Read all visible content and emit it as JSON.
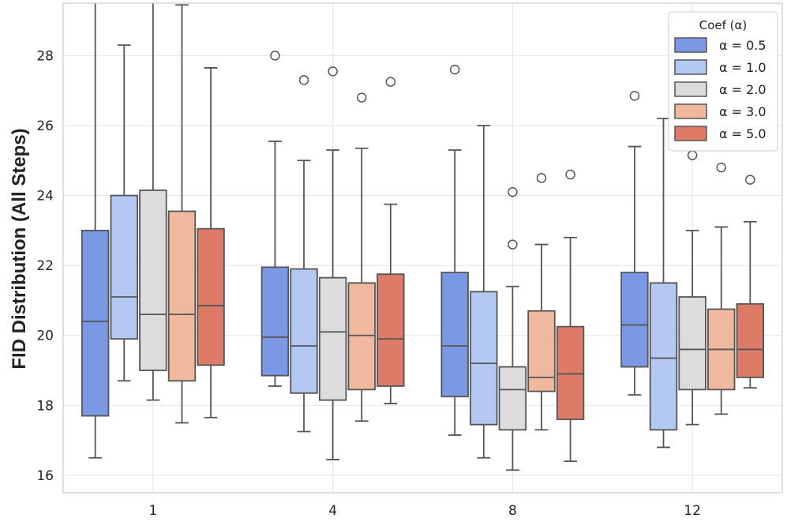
{
  "chart_data": {
    "type": "box",
    "title": "",
    "xlabel": "",
    "ylabel": "FID Distribution (All Steps)",
    "ylim": [
      15.5,
      29.5
    ],
    "yticks": [
      16,
      18,
      20,
      22,
      24,
      26,
      28
    ],
    "grid": true,
    "categories": [
      "1",
      "4",
      "8",
      "12"
    ],
    "legend": {
      "title": "Coef (α)",
      "placement": "top-right"
    },
    "series": [
      {
        "name": "α = 0.5",
        "color": "#7b98e5",
        "boxes": [
          {
            "min": 16.5,
            "q1": 17.7,
            "median": 20.4,
            "q3": 23.0,
            "max": 29.5,
            "outliers": []
          },
          {
            "min": 18.55,
            "q1": 18.85,
            "median": 19.95,
            "q3": 21.95,
            "max": 25.55,
            "outliers": [
              28.0
            ]
          },
          {
            "min": 17.15,
            "q1": 18.25,
            "median": 19.7,
            "q3": 21.8,
            "max": 25.3,
            "outliers": [
              27.6
            ]
          },
          {
            "min": 18.3,
            "q1": 19.1,
            "median": 20.3,
            "q3": 21.8,
            "max": 25.4,
            "outliers": [
              26.85
            ]
          }
        ]
      },
      {
        "name": "α = 1.0",
        "color": "#b3c8f2",
        "boxes": [
          {
            "min": 18.7,
            "q1": 19.9,
            "median": 21.1,
            "q3": 24.0,
            "max": 28.3,
            "outliers": []
          },
          {
            "min": 17.25,
            "q1": 18.35,
            "median": 19.7,
            "q3": 21.9,
            "max": 25.0,
            "outliers": [
              27.3
            ]
          },
          {
            "min": 16.5,
            "q1": 17.45,
            "median": 19.2,
            "q3": 21.25,
            "max": 26.0,
            "outliers": []
          },
          {
            "min": 16.8,
            "q1": 17.3,
            "median": 19.35,
            "q3": 21.5,
            "max": 26.2,
            "outliers": []
          }
        ]
      },
      {
        "name": "α = 2.0",
        "color": "#dcdcdc",
        "boxes": [
          {
            "min": 18.15,
            "q1": 19.0,
            "median": 20.6,
            "q3": 24.15,
            "max": 29.5,
            "outliers": []
          },
          {
            "min": 16.45,
            "q1": 18.15,
            "median": 20.1,
            "q3": 21.65,
            "max": 25.3,
            "outliers": [
              27.55
            ]
          },
          {
            "min": 16.15,
            "q1": 17.3,
            "median": 18.45,
            "q3": 19.1,
            "max": 21.4,
            "outliers": [
              22.6,
              24.1
            ]
          },
          {
            "min": 17.45,
            "q1": 18.45,
            "median": 19.6,
            "q3": 21.1,
            "max": 23.0,
            "outliers": [
              25.15
            ]
          }
        ]
      },
      {
        "name": "α = 3.0",
        "color": "#efb89f",
        "boxes": [
          {
            "min": 17.5,
            "q1": 18.7,
            "median": 20.6,
            "q3": 23.55,
            "max": 29.45,
            "outliers": []
          },
          {
            "min": 17.55,
            "q1": 18.45,
            "median": 20.0,
            "q3": 21.5,
            "max": 25.35,
            "outliers": [
              26.8
            ]
          },
          {
            "min": 17.3,
            "q1": 18.4,
            "median": 18.8,
            "q3": 20.7,
            "max": 22.6,
            "outliers": [
              24.5
            ]
          },
          {
            "min": 17.75,
            "q1": 18.45,
            "median": 19.6,
            "q3": 20.75,
            "max": 23.1,
            "outliers": [
              24.8
            ]
          }
        ]
      },
      {
        "name": "α = 5.0",
        "color": "#dd7b67",
        "boxes": [
          {
            "min": 17.65,
            "q1": 19.15,
            "median": 20.85,
            "q3": 23.05,
            "max": 27.65,
            "outliers": []
          },
          {
            "min": 18.05,
            "q1": 18.55,
            "median": 19.9,
            "q3": 21.75,
            "max": 23.75,
            "outliers": [
              27.25
            ]
          },
          {
            "min": 16.4,
            "q1": 17.6,
            "median": 18.9,
            "q3": 20.25,
            "max": 22.8,
            "outliers": [
              24.6
            ]
          },
          {
            "min": 18.5,
            "q1": 18.8,
            "median": 19.6,
            "q3": 20.9,
            "max": 23.25,
            "outliers": [
              24.45
            ]
          }
        ]
      }
    ]
  }
}
